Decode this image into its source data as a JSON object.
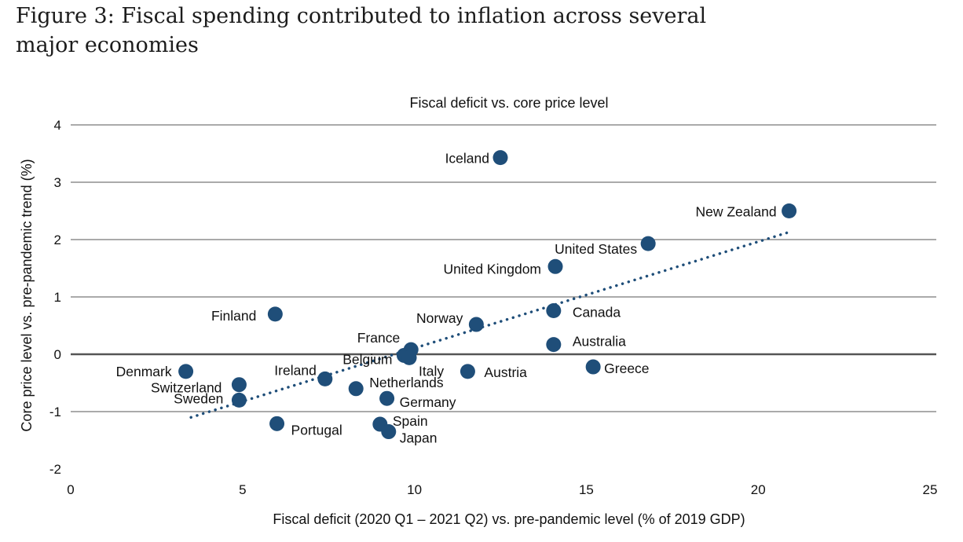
{
  "figure": {
    "title_line1": "Figure 3: Fiscal spending contributed to inflation across several",
    "title_line2": "major economies"
  },
  "chart_data": {
    "type": "scatter",
    "title": "Fiscal deficit vs. core price level",
    "xlabel": "Fiscal deficit (2020 Q1 – 2021 Q2) vs. pre-pandemic level  (% of 2019 GDP)",
    "ylabel": "Core price level vs. pre-pandemic trend (%)",
    "xlim": [
      0,
      25
    ],
    "ylim": [
      -2,
      4
    ],
    "x_ticks": [
      "0",
      "5",
      "10",
      "15",
      "20",
      "25"
    ],
    "y_ticks": [
      "4",
      "3",
      "2",
      "1",
      "0",
      "-1",
      "-2"
    ],
    "grid": "horizontal",
    "point_color": "#1f4e79",
    "trendline_color": "#1f4e79",
    "trendline": {
      "style": "dotted",
      "x": [
        3.5,
        20.9
      ],
      "y": [
        -1.1,
        2.13
      ]
    },
    "points": [
      {
        "label": "Iceland",
        "x": 12.5,
        "y": 3.43
      },
      {
        "label": "New Zealand",
        "x": 20.9,
        "y": 2.5
      },
      {
        "label": "United States",
        "x": 16.8,
        "y": 1.93
      },
      {
        "label": "United Kingdom",
        "x": 14.1,
        "y": 1.53
      },
      {
        "label": "Canada",
        "x": 14.05,
        "y": 0.76
      },
      {
        "label": "Australia",
        "x": 14.05,
        "y": 0.17
      },
      {
        "label": "Greece",
        "x": 15.2,
        "y": -0.22
      },
      {
        "label": "Finland",
        "x": 5.95,
        "y": 0.7
      },
      {
        "label": "Norway",
        "x": 11.8,
        "y": 0.52
      },
      {
        "label": "France",
        "x": 9.9,
        "y": 0.08
      },
      {
        "label": "Belgium",
        "x": 9.7,
        "y": -0.02
      },
      {
        "label": "Italy",
        "x": 9.85,
        "y": -0.06
      },
      {
        "label": "Austria",
        "x": 11.55,
        "y": -0.3
      },
      {
        "label": "Denmark",
        "x": 3.35,
        "y": -0.3
      },
      {
        "label": "Switzerland",
        "x": 4.9,
        "y": -0.53
      },
      {
        "label": "Sweden",
        "x": 4.9,
        "y": -0.8
      },
      {
        "label": "Ireland",
        "x": 7.4,
        "y": -0.43
      },
      {
        "label": "Netherlands",
        "x": 8.3,
        "y": -0.6
      },
      {
        "label": "Germany",
        "x": 9.2,
        "y": -0.77
      },
      {
        "label": "Portugal",
        "x": 6.0,
        "y": -1.21
      },
      {
        "label": "Spain",
        "x": 9.0,
        "y": -1.22
      },
      {
        "label": "Japan",
        "x": 9.25,
        "y": -1.35
      }
    ]
  }
}
